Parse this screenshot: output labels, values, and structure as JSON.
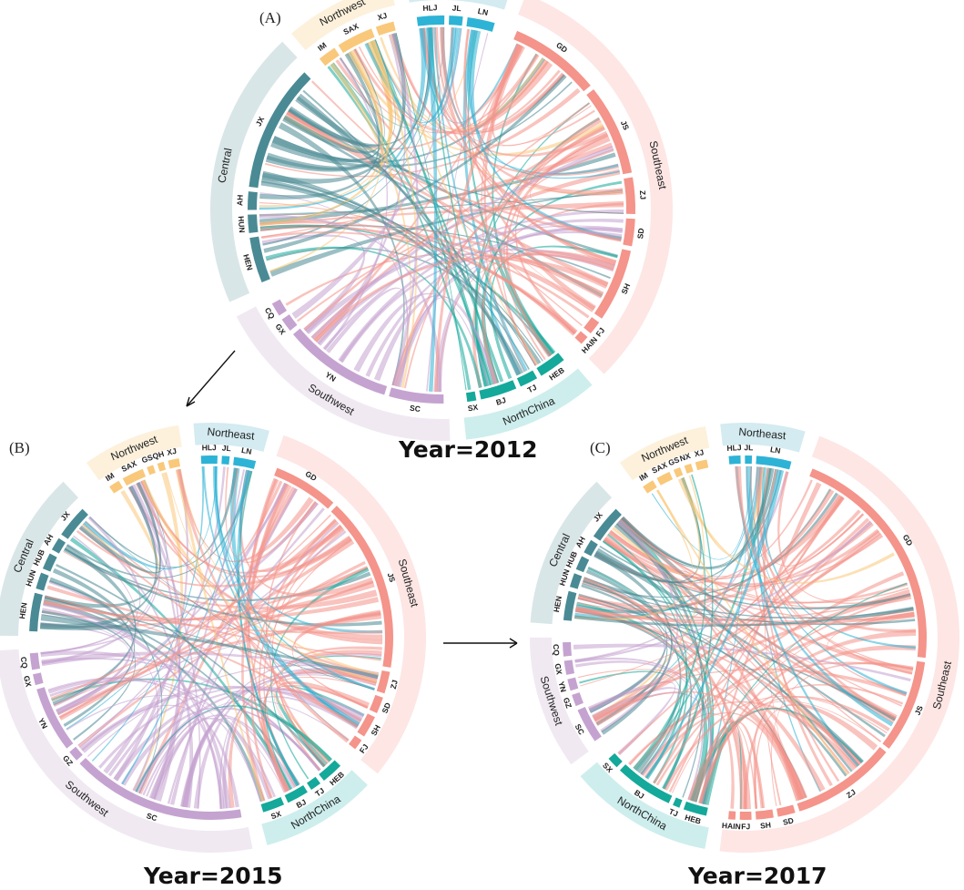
{
  "colors": {
    "Northwest": "#f9c87a",
    "Northeast": "#2db3d6",
    "Southeast": "#f4948a",
    "NorthChina": "#14a99a",
    "Southwest": "#c5a3d0",
    "Central": "#4a8a94"
  },
  "band_colors": {
    "Northwest": "#fdf1dc",
    "Northeast": "#d3ebf1",
    "Southeast": "#fde6e4",
    "NorthChina": "#cdeeed",
    "Southwest": "#f0e9f2",
    "Central": "#d9e6e8"
  },
  "panels": [
    {
      "letter": "(A)",
      "year": "Year=2012",
      "regions": [
        {
          "name": "Northwest",
          "provinces": [
            {
              "code": "IM",
              "w": 2
            },
            {
              "code": "SAX",
              "w": 4
            },
            {
              "code": "XJ",
              "w": 2
            }
          ]
        },
        {
          "name": "Northeast",
          "provinces": [
            {
              "code": "HLJ",
              "w": 3
            },
            {
              "code": "JL",
              "w": 1.5
            },
            {
              "code": "LN",
              "w": 3
            }
          ]
        },
        {
          "name": "Southeast",
          "provinces": [
            {
              "code": "GD",
              "w": 10
            },
            {
              "code": "JS",
              "w": 10
            },
            {
              "code": "ZJ",
              "w": 4
            },
            {
              "code": "SD",
              "w": 3
            },
            {
              "code": "SH",
              "w": 8
            },
            {
              "code": "FJ",
              "w": 1.5
            },
            {
              "code": "HAIN",
              "w": 1
            }
          ]
        },
        {
          "name": "NorthChina",
          "provinces": [
            {
              "code": "HEB",
              "w": 3
            },
            {
              "code": "TJ",
              "w": 2
            },
            {
              "code": "BJ",
              "w": 4
            },
            {
              "code": "SX",
              "w": 1
            }
          ]
        },
        {
          "name": "Southwest",
          "provinces": [
            {
              "code": "SC",
              "w": 6
            },
            {
              "code": "YN",
              "w": 12
            },
            {
              "code": "GX",
              "w": 1.5
            },
            {
              "code": "CQ",
              "w": 1.5
            }
          ]
        },
        {
          "name": "Central",
          "provinces": [
            {
              "code": "HEN",
              "w": 5
            },
            {
              "code": "HUN",
              "w": 2
            },
            {
              "code": "AH",
              "w": 2
            },
            {
              "code": "JX",
              "w": 14
            }
          ]
        }
      ]
    },
    {
      "letter": "(B)",
      "year": "Year=2015",
      "regions": [
        {
          "name": "Northwest",
          "provinces": [
            {
              "code": "IM",
              "w": 1
            },
            {
              "code": "SAX",
              "w": 2
            },
            {
              "code": "GS",
              "w": 0.6
            },
            {
              "code": "QH",
              "w": 0.6
            },
            {
              "code": "XJ",
              "w": 1
            }
          ]
        },
        {
          "name": "Northeast",
          "provinces": [
            {
              "code": "HLJ",
              "w": 1.5
            },
            {
              "code": "JL",
              "w": 0.7
            },
            {
              "code": "LN",
              "w": 2
            }
          ]
        },
        {
          "name": "Southeast",
          "provinces": [
            {
              "code": "GD",
              "w": 6
            },
            {
              "code": "JS",
              "w": 16
            },
            {
              "code": "ZJ",
              "w": 2
            },
            {
              "code": "SD",
              "w": 1.5
            },
            {
              "code": "SH",
              "w": 2
            },
            {
              "code": "FJ",
              "w": 1
            }
          ]
        },
        {
          "name": "NorthChina",
          "provinces": [
            {
              "code": "HEB",
              "w": 2
            },
            {
              "code": "TJ",
              "w": 1
            },
            {
              "code": "BJ",
              "w": 2
            },
            {
              "code": "SX",
              "w": 2
            }
          ]
        },
        {
          "name": "Southwest",
          "provinces": [
            {
              "code": "SC",
              "w": 16
            },
            {
              "code": "GZ",
              "w": 1
            },
            {
              "code": "YN",
              "w": 6
            },
            {
              "code": "GX",
              "w": 1
            },
            {
              "code": "CQ",
              "w": 1.5
            }
          ]
        },
        {
          "name": "Central",
          "provinces": [
            {
              "code": "HEN",
              "w": 3.5
            },
            {
              "code": "HUN",
              "w": 1.5
            },
            {
              "code": "HUB",
              "w": 1.5
            },
            {
              "code": "AH",
              "w": 1.2
            },
            {
              "code": "JX",
              "w": 3
            }
          ]
        }
      ]
    },
    {
      "letter": "(C)",
      "year": "Year=2017",
      "regions": [
        {
          "name": "Northwest",
          "provinces": [
            {
              "code": "IM",
              "w": 1
            },
            {
              "code": "SAX",
              "w": 1.2
            },
            {
              "code": "GS",
              "w": 0.6
            },
            {
              "code": "NX",
              "w": 0.6
            },
            {
              "code": "XJ",
              "w": 1
            }
          ]
        },
        {
          "name": "Northeast",
          "provinces": [
            {
              "code": "HLJ",
              "w": 1
            },
            {
              "code": "JL",
              "w": 0.6
            },
            {
              "code": "LN",
              "w": 3
            }
          ]
        },
        {
          "name": "Southeast",
          "provinces": [
            {
              "code": "GD",
              "w": 20
            },
            {
              "code": "JS",
              "w": 8
            },
            {
              "code": "ZJ",
              "w": 9
            },
            {
              "code": "SD",
              "w": 1.5
            },
            {
              "code": "SH",
              "w": 1.5
            },
            {
              "code": "FJ",
              "w": 1
            },
            {
              "code": "HAIN",
              "w": 0.6
            }
          ]
        },
        {
          "name": "NorthChina",
          "provinces": [
            {
              "code": "HEB",
              "w": 2
            },
            {
              "code": "TJ",
              "w": 0.6
            },
            {
              "code": "BJ",
              "w": 5
            },
            {
              "code": "SX",
              "w": 1
            }
          ]
        },
        {
          "name": "Southwest",
          "provinces": [
            {
              "code": "SC",
              "w": 3
            },
            {
              "code": "GZ",
              "w": 1
            },
            {
              "code": "YN",
              "w": 1
            },
            {
              "code": "GX",
              "w": 1.2
            },
            {
              "code": "CQ",
              "w": 1.2
            }
          ]
        },
        {
          "name": "Central",
          "provinces": [
            {
              "code": "HEN",
              "w": 2.5
            },
            {
              "code": "HUN",
              "w": 1.2
            },
            {
              "code": "HUB",
              "w": 1.2
            },
            {
              "code": "AH",
              "w": 1.2
            },
            {
              "code": "JX",
              "w": 3
            }
          ]
        }
      ]
    }
  ]
}
